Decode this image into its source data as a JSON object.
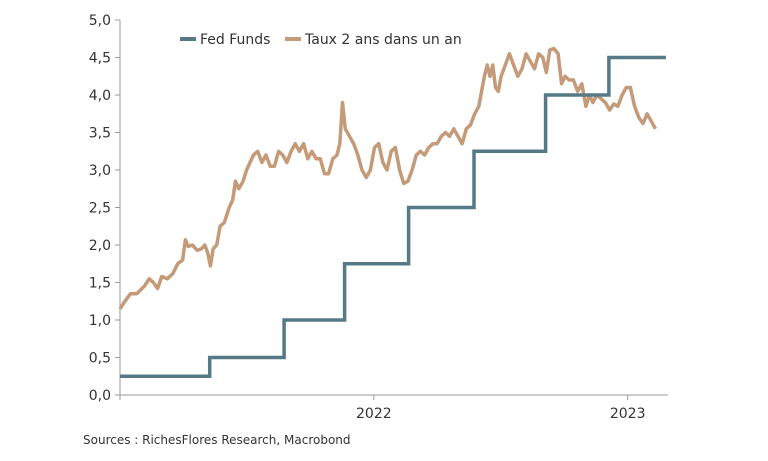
{
  "chart_data": {
    "type": "line",
    "title": "",
    "xlabel": "",
    "ylabel": "",
    "ylim": [
      0,
      5
    ],
    "y_ticks": [
      "0,0",
      "0,5",
      "1,0",
      "1,5",
      "2,0",
      "2,5",
      "3,0",
      "3,5",
      "4,0",
      "4,5",
      "5,0"
    ],
    "xlim": [
      "2021-01-01",
      "2023-02-28"
    ],
    "x_ticks": [
      {
        "label": "2022",
        "date": "2022-01-01"
      },
      {
        "label": "2023",
        "date": "2023-01-01"
      }
    ],
    "grid": false,
    "legend_position": "top",
    "series": [
      {
        "name": "Fed Funds",
        "color": "#557a86",
        "step": true,
        "points": [
          [
            "2021-01-01",
            0.25
          ],
          [
            "2021-05-10",
            0.25
          ],
          [
            "2021-05-10",
            0.5
          ],
          [
            "2021-08-25",
            0.5
          ],
          [
            "2021-08-25",
            1.0
          ],
          [
            "2021-11-20",
            1.0
          ],
          [
            "2021-11-20",
            1.75
          ],
          [
            "2022-02-20",
            1.75
          ],
          [
            "2022-02-20",
            2.5
          ],
          [
            "2022-05-25",
            2.5
          ],
          [
            "2022-05-25",
            3.25
          ],
          [
            "2022-09-05",
            3.25
          ],
          [
            "2022-09-05",
            4.0
          ],
          [
            "2022-12-05",
            4.0
          ],
          [
            "2022-12-05",
            4.5
          ],
          [
            "2023-02-25",
            4.5
          ]
        ]
      },
      {
        "name": "Taux 2 ans dans un an",
        "color": "#c49a78",
        "step": false,
        "points": [
          [
            "2021-01-01",
            1.15
          ],
          [
            "2021-01-08",
            1.25
          ],
          [
            "2021-01-16",
            1.35
          ],
          [
            "2021-01-25",
            1.35
          ],
          [
            "2021-02-05",
            1.45
          ],
          [
            "2021-02-12",
            1.55
          ],
          [
            "2021-02-18",
            1.5
          ],
          [
            "2021-02-24",
            1.42
          ],
          [
            "2021-03-02",
            1.58
          ],
          [
            "2021-03-10",
            1.55
          ],
          [
            "2021-03-18",
            1.62
          ],
          [
            "2021-03-25",
            1.75
          ],
          [
            "2021-04-01",
            1.8
          ],
          [
            "2021-04-05",
            2.07
          ],
          [
            "2021-04-09",
            1.98
          ],
          [
            "2021-04-15",
            2.0
          ],
          [
            "2021-04-22",
            1.93
          ],
          [
            "2021-04-28",
            1.95
          ],
          [
            "2021-05-03",
            2.0
          ],
          [
            "2021-05-07",
            1.9
          ],
          [
            "2021-05-11",
            1.72
          ],
          [
            "2021-05-15",
            1.95
          ],
          [
            "2021-05-20",
            2.0
          ],
          [
            "2021-05-25",
            2.25
          ],
          [
            "2021-05-31",
            2.3
          ],
          [
            "2021-06-07",
            2.5
          ],
          [
            "2021-06-12",
            2.6
          ],
          [
            "2021-06-16",
            2.85
          ],
          [
            "2021-06-21",
            2.75
          ],
          [
            "2021-06-27",
            2.85
          ],
          [
            "2021-07-02",
            3.0
          ],
          [
            "2021-07-07",
            3.1
          ],
          [
            "2021-07-12",
            3.2
          ],
          [
            "2021-07-18",
            3.25
          ],
          [
            "2021-07-24",
            3.1
          ],
          [
            "2021-07-30",
            3.2
          ],
          [
            "2021-08-05",
            3.05
          ],
          [
            "2021-08-11",
            3.05
          ],
          [
            "2021-08-17",
            3.25
          ],
          [
            "2021-08-23",
            3.2
          ],
          [
            "2021-08-29",
            3.1
          ],
          [
            "2021-09-04",
            3.25
          ],
          [
            "2021-09-10",
            3.35
          ],
          [
            "2021-09-16",
            3.25
          ],
          [
            "2021-09-22",
            3.35
          ],
          [
            "2021-09-28",
            3.15
          ],
          [
            "2021-10-04",
            3.25
          ],
          [
            "2021-10-10",
            3.15
          ],
          [
            "2021-10-16",
            3.15
          ],
          [
            "2021-10-22",
            2.95
          ],
          [
            "2021-10-28",
            2.95
          ],
          [
            "2021-11-03",
            3.15
          ],
          [
            "2021-11-09",
            3.2
          ],
          [
            "2021-11-13",
            3.35
          ],
          [
            "2021-11-17",
            3.9
          ],
          [
            "2021-11-21",
            3.55
          ],
          [
            "2021-11-27",
            3.45
          ],
          [
            "2021-12-03",
            3.35
          ],
          [
            "2021-12-09",
            3.2
          ],
          [
            "2021-12-15",
            3.0
          ],
          [
            "2021-12-21",
            2.9
          ],
          [
            "2021-12-27",
            3.0
          ],
          [
            "2022-01-02",
            3.3
          ],
          [
            "2022-01-08",
            3.35
          ],
          [
            "2022-01-14",
            3.1
          ],
          [
            "2022-01-20",
            3.0
          ],
          [
            "2022-01-26",
            3.25
          ],
          [
            "2022-02-01",
            3.3
          ],
          [
            "2022-02-07",
            3.0
          ],
          [
            "2022-02-13",
            2.82
          ],
          [
            "2022-02-19",
            2.85
          ],
          [
            "2022-02-25",
            3.0
          ],
          [
            "2022-03-03",
            3.2
          ],
          [
            "2022-03-09",
            3.25
          ],
          [
            "2022-03-15",
            3.2
          ],
          [
            "2022-03-21",
            3.3
          ],
          [
            "2022-03-27",
            3.35
          ],
          [
            "2022-04-02",
            3.35
          ],
          [
            "2022-04-08",
            3.45
          ],
          [
            "2022-04-14",
            3.5
          ],
          [
            "2022-04-20",
            3.45
          ],
          [
            "2022-04-26",
            3.55
          ],
          [
            "2022-05-02",
            3.45
          ],
          [
            "2022-05-08",
            3.35
          ],
          [
            "2022-05-14",
            3.55
          ],
          [
            "2022-05-20",
            3.6
          ],
          [
            "2022-05-26",
            3.75
          ],
          [
            "2022-06-01",
            3.85
          ],
          [
            "2022-06-05",
            4.05
          ],
          [
            "2022-06-09",
            4.25
          ],
          [
            "2022-06-13",
            4.4
          ],
          [
            "2022-06-17",
            4.25
          ],
          [
            "2022-06-21",
            4.4
          ],
          [
            "2022-06-25",
            4.1
          ],
          [
            "2022-06-29",
            4.05
          ],
          [
            "2022-07-03",
            4.25
          ],
          [
            "2022-07-09",
            4.4
          ],
          [
            "2022-07-15",
            4.55
          ],
          [
            "2022-07-21",
            4.4
          ],
          [
            "2022-07-27",
            4.25
          ],
          [
            "2022-08-02",
            4.35
          ],
          [
            "2022-08-08",
            4.55
          ],
          [
            "2022-08-14",
            4.45
          ],
          [
            "2022-08-20",
            4.35
          ],
          [
            "2022-08-26",
            4.55
          ],
          [
            "2022-09-01",
            4.5
          ],
          [
            "2022-09-06",
            4.3
          ],
          [
            "2022-09-11",
            4.6
          ],
          [
            "2022-09-17",
            4.62
          ],
          [
            "2022-09-23",
            4.55
          ],
          [
            "2022-09-28",
            4.15
          ],
          [
            "2022-10-03",
            4.25
          ],
          [
            "2022-10-09",
            4.2
          ],
          [
            "2022-10-15",
            4.2
          ],
          [
            "2022-10-21",
            4.05
          ],
          [
            "2022-10-27",
            4.15
          ],
          [
            "2022-11-02",
            3.85
          ],
          [
            "2022-11-07",
            4.0
          ],
          [
            "2022-11-12",
            3.9
          ],
          [
            "2022-11-18",
            4.0
          ],
          [
            "2022-11-24",
            3.95
          ],
          [
            "2022-11-30",
            3.9
          ],
          [
            "2022-12-06",
            3.8
          ],
          [
            "2022-12-12",
            3.88
          ],
          [
            "2022-12-18",
            3.85
          ],
          [
            "2022-12-24",
            4.0
          ],
          [
            "2022-12-30",
            4.1
          ],
          [
            "2023-01-05",
            4.1
          ],
          [
            "2023-01-11",
            3.85
          ],
          [
            "2023-01-17",
            3.7
          ],
          [
            "2023-01-23",
            3.62
          ],
          [
            "2023-01-29",
            3.75
          ],
          [
            "2023-02-04",
            3.65
          ],
          [
            "2023-02-10",
            3.55
          ]
        ]
      }
    ]
  },
  "source": "Sources : RichesFlores Research, Macrobond"
}
